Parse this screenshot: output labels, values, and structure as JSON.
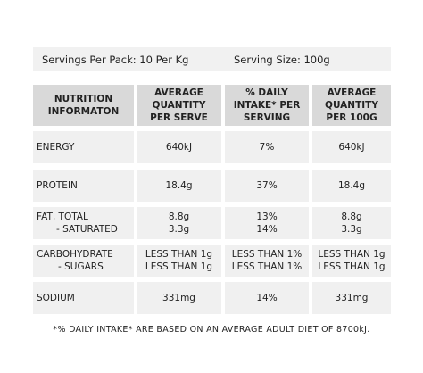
{
  "servings": {
    "per_pack": "Servings Per Pack: 10 Per Kg",
    "serving_size": "Serving Size: 100g"
  },
  "table": {
    "header": [
      "NUTRITION INFORMATON",
      "AVERAGE QUANTITY PER SERVE",
      "% DAILY INTAKE* PER SERVING",
      "AVERAGE QUANTITY PER 100G"
    ],
    "rows": [
      [
        [
          "ENERGY"
        ],
        [
          "640kJ"
        ],
        [
          "7%"
        ],
        [
          "640kJ"
        ]
      ],
      [
        [
          "PROTEIN"
        ],
        [
          "18.4g"
        ],
        [
          "37%"
        ],
        [
          "18.4g"
        ]
      ],
      [
        [
          "FAT, TOTAL",
          "- SATURATED"
        ],
        [
          "8.8g",
          "3.3g"
        ],
        [
          "13%",
          "14%"
        ],
        [
          "8.8g",
          "3.3g"
        ]
      ],
      [
        [
          "CARBOHYDRATE",
          "- SUGARS"
        ],
        [
          "LESS THAN 1g",
          "LESS THAN 1g"
        ],
        [
          "LESS THAN 1%",
          "LESS THAN 1%"
        ],
        [
          "LESS THAN 1g",
          "LESS THAN 1g"
        ]
      ],
      [
        [
          "SODIUM"
        ],
        [
          "331mg"
        ],
        [
          "14%"
        ],
        [
          "331mg"
        ]
      ]
    ]
  },
  "footnote": "*% DAILY INTAKE* ARE BASED ON AN AVERAGE ADULT DIET OF 8700kJ."
}
